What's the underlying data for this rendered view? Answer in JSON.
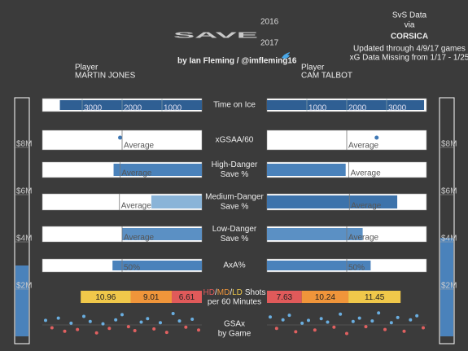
{
  "header": {
    "title": "SAVE",
    "year_top": "2016",
    "year_bottom": "2017",
    "byline": "by Ian Fleming / @imfleming16",
    "source_lines": [
      "SvS Data",
      "via",
      "CORSICA",
      "Updated through 4/9/17 games",
      "xG Data Missing from 1/17 - 1/25"
    ]
  },
  "players": [
    {
      "label": "Player",
      "name": "MARTIN JONES"
    },
    {
      "label": "Player",
      "name": "CAM TALBOT"
    }
  ],
  "chart_data": [
    {
      "type": "bar",
      "title": [
        "Time on Ice"
      ],
      "values": [
        3560,
        3940
      ],
      "xlim": [
        0,
        4000
      ],
      "xticks": [
        1000,
        2000,
        3000
      ],
      "colors": [
        "#2f5f93",
        "#2f5f93"
      ]
    },
    {
      "type": "dot",
      "title": [
        "xGSAA/60"
      ],
      "values": [
        0.01,
        0.15
      ],
      "xlim": [
        -0.4,
        0.4
      ],
      "average": {
        "value": 0,
        "label": "Average"
      },
      "colors": [
        "#3f78b5",
        "#3f78b5"
      ]
    },
    {
      "type": "bar",
      "title": [
        "High-Danger",
        "Save %"
      ],
      "values": [
        0.833,
        0.824
      ],
      "xlim": [
        0.75,
        0.9
      ],
      "average": {
        "value": 0.827,
        "label": "Average"
      },
      "colors": [
        "#4a82bb",
        "#4a82bb"
      ]
    },
    {
      "type": "bar",
      "title": [
        "Medium-Danger",
        "Save %"
      ],
      "values": [
        0.899,
        0.929
      ],
      "xlim": [
        0.88,
        0.94
      ],
      "average": {
        "value": 0.911,
        "label": "Average"
      },
      "colors": [
        "#8ab4d8",
        "#3d73ab"
      ]
    },
    {
      "type": "bar",
      "title": [
        "Low-Danger",
        "Save %"
      ],
      "values": [
        0.975,
        0.978
      ],
      "xlim": [
        0.96,
        0.99
      ],
      "average": {
        "value": 0.975,
        "label": "Average"
      },
      "colors": [
        "#5b90c4",
        "#5b90c4"
      ]
    },
    {
      "type": "bar",
      "title": [
        "AxA%"
      ],
      "values": [
        56,
        65
      ],
      "xlim": [
        0,
        100
      ],
      "average": {
        "value": 50,
        "label": "50%"
      },
      "colors": [
        "#4a82bb",
        "#4a82bb"
      ]
    },
    {
      "type": "stacked_bar",
      "separator": "/",
      "title_suffix": "Shots",
      "subtitle": "per 60 Minutes",
      "xlim": [
        0,
        35
      ],
      "series": [
        {
          "name": "HD",
          "color": "#e05a5a",
          "values": [
            6.61,
            7.63
          ]
        },
        {
          "name": "MD",
          "color": "#f0953a",
          "values": [
            9.01,
            10.24
          ]
        },
        {
          "name": "LD",
          "color": "#f0c84a",
          "values": [
            10.96,
            11.45
          ]
        }
      ]
    },
    {
      "type": "salary_bar",
      "values": [
        3000000,
        4166667
      ],
      "ylim": [
        0,
        10000000
      ],
      "color": "#4a82bb",
      "yticks": [
        {
          "value": 2000000,
          "label": "$2M"
        },
        {
          "value": 4000000,
          "label": "$4M"
        },
        {
          "value": 6000000,
          "label": "$6M"
        },
        {
          "value": 8000000,
          "label": "$8M"
        }
      ]
    },
    {
      "type": "scatter",
      "title": [
        "GSAx",
        "by Game"
      ],
      "ylim": [
        -3,
        3
      ],
      "pos_color": "#6aaee0",
      "neg_color": "#e06060",
      "series": [
        {
          "values": [
            0.8,
            -0.5,
            1.2,
            -1.1,
            0.3,
            -0.8,
            1.5,
            0.6,
            -1.4,
            0.2,
            -0.6,
            0.9,
            1.8,
            -0.3,
            -1.0,
            0.5,
            1.1,
            -0.7,
            0.4,
            -1.3,
            2.0,
            0.7,
            -0.4,
            1.0,
            -0.9
          ]
        },
        {
          "values": [
            1.4,
            -0.6,
            0.9,
            1.7,
            -1.2,
            0.3,
            0.8,
            -0.9,
            1.1,
            0.5,
            -0.4,
            1.9,
            -1.5,
            0.6,
            1.2,
            -0.3,
            0.7,
            2.1,
            -0.8,
            0.4,
            1.3,
            -1.1,
            0.9,
            1.6,
            -0.5
          ]
        }
      ]
    }
  ]
}
